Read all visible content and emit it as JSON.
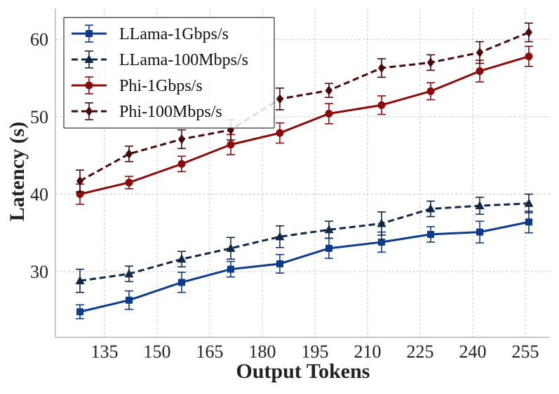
{
  "chart_data": {
    "type": "line",
    "title": "",
    "xlabel": "Output Tokens",
    "ylabel": "Latency (s)",
    "xlim": [
      121,
      262
    ],
    "ylim": [
      21.5,
      64
    ],
    "xticks": [
      135,
      150,
      165,
      180,
      195,
      210,
      225,
      240,
      255
    ],
    "yticks": [
      30,
      40,
      50,
      60
    ],
    "grid": true,
    "legend_position": "top-left",
    "x": [
      128,
      142,
      157,
      171,
      185,
      199,
      214,
      228,
      242,
      256
    ],
    "series": [
      {
        "name": "LLama-1Gbps/s",
        "color": "#0c3a8c",
        "line_style": "solid",
        "marker": "square",
        "values": [
          24.8,
          26.3,
          28.6,
          30.3,
          31.0,
          33.0,
          33.8,
          34.8,
          35.1,
          36.4
        ],
        "errors": [
          0.9,
          1.2,
          1.3,
          1.0,
          1.2,
          1.3,
          1.3,
          1.0,
          1.4,
          1.4
        ]
      },
      {
        "name": "LLama-100Mbps/s",
        "color": "#102848",
        "line_style": "dashed",
        "marker": "triangle",
        "values": [
          28.8,
          29.7,
          31.6,
          33.0,
          34.5,
          35.4,
          36.2,
          38.1,
          38.5,
          38.8
        ],
        "errors": [
          1.5,
          1.0,
          1.0,
          1.4,
          1.4,
          1.1,
          1.5,
          1.0,
          1.1,
          1.2
        ]
      },
      {
        "name": "Phi-1Gbps/s",
        "color": "#8b0a0a",
        "line_style": "solid",
        "marker": "circle",
        "values": [
          40.0,
          41.5,
          43.9,
          46.4,
          47.9,
          50.4,
          51.5,
          53.3,
          55.9,
          57.8
        ],
        "errors": [
          1.3,
          0.8,
          1.0,
          1.3,
          1.3,
          1.3,
          1.2,
          1.1,
          1.4,
          1.3
        ]
      },
      {
        "name": "Phi-100Mbps/s",
        "color": "#4a0808",
        "line_style": "dashed",
        "marker": "diamond",
        "values": [
          41.7,
          45.2,
          47.1,
          48.3,
          52.3,
          53.4,
          56.3,
          57.0,
          58.3,
          60.9
        ],
        "errors": [
          1.4,
          1.0,
          1.2,
          1.3,
          1.4,
          0.9,
          1.2,
          1.0,
          1.4,
          1.2
        ]
      }
    ]
  }
}
